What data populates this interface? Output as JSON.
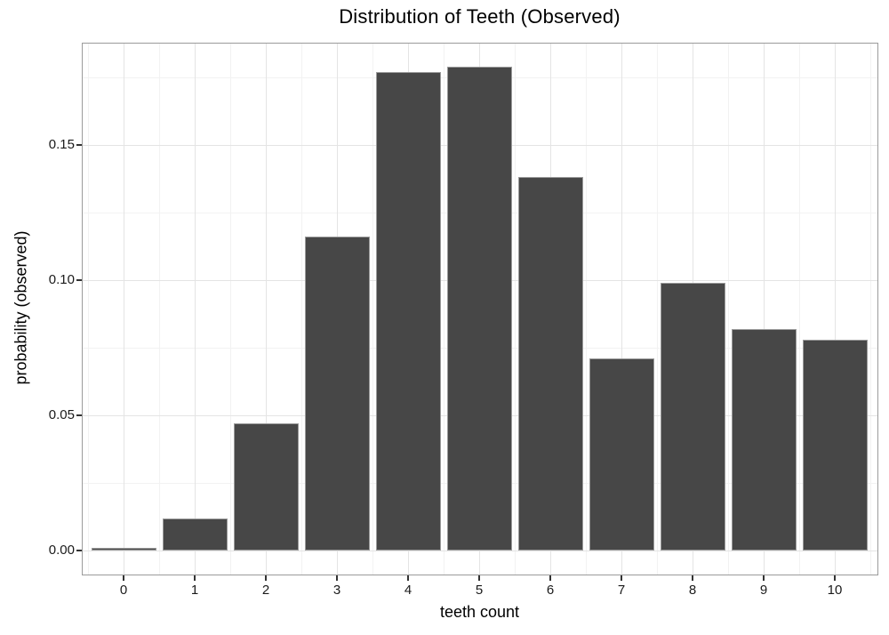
{
  "chart_data": {
    "type": "bar",
    "title": "Distribution of Teeth (Observed)",
    "xlabel": "teeth count",
    "ylabel": "probability (observed)",
    "categories": [
      "0",
      "1",
      "2",
      "3",
      "4",
      "5",
      "6",
      "7",
      "8",
      "9",
      "10"
    ],
    "values": [
      0.001,
      0.012,
      0.047,
      0.116,
      0.177,
      0.179,
      0.138,
      0.071,
      0.099,
      0.082,
      0.078
    ],
    "ylim": [
      0,
      0.188
    ],
    "y_major_ticks": [
      0,
      0.05,
      0.1,
      0.15
    ],
    "y_tick_labels": [
      "0.00",
      "0.05",
      "0.10",
      "0.15"
    ],
    "y_minor_ticks": [
      0.025,
      0.075,
      0.125,
      0.175
    ],
    "grid": "major and minor, both axes",
    "legend_position": "none",
    "colors": {
      "bar_fill": "#474747",
      "bar_stroke": "#9b9b9b",
      "panel_background": "#ffffff",
      "panel_border": "#9b9b9b",
      "grid_major": "#e4e4e4",
      "grid_minor": "#f2f2f2",
      "tick_mark": "#333333",
      "tick_text": "#1a1a1a",
      "title_text": "#000000"
    }
  }
}
